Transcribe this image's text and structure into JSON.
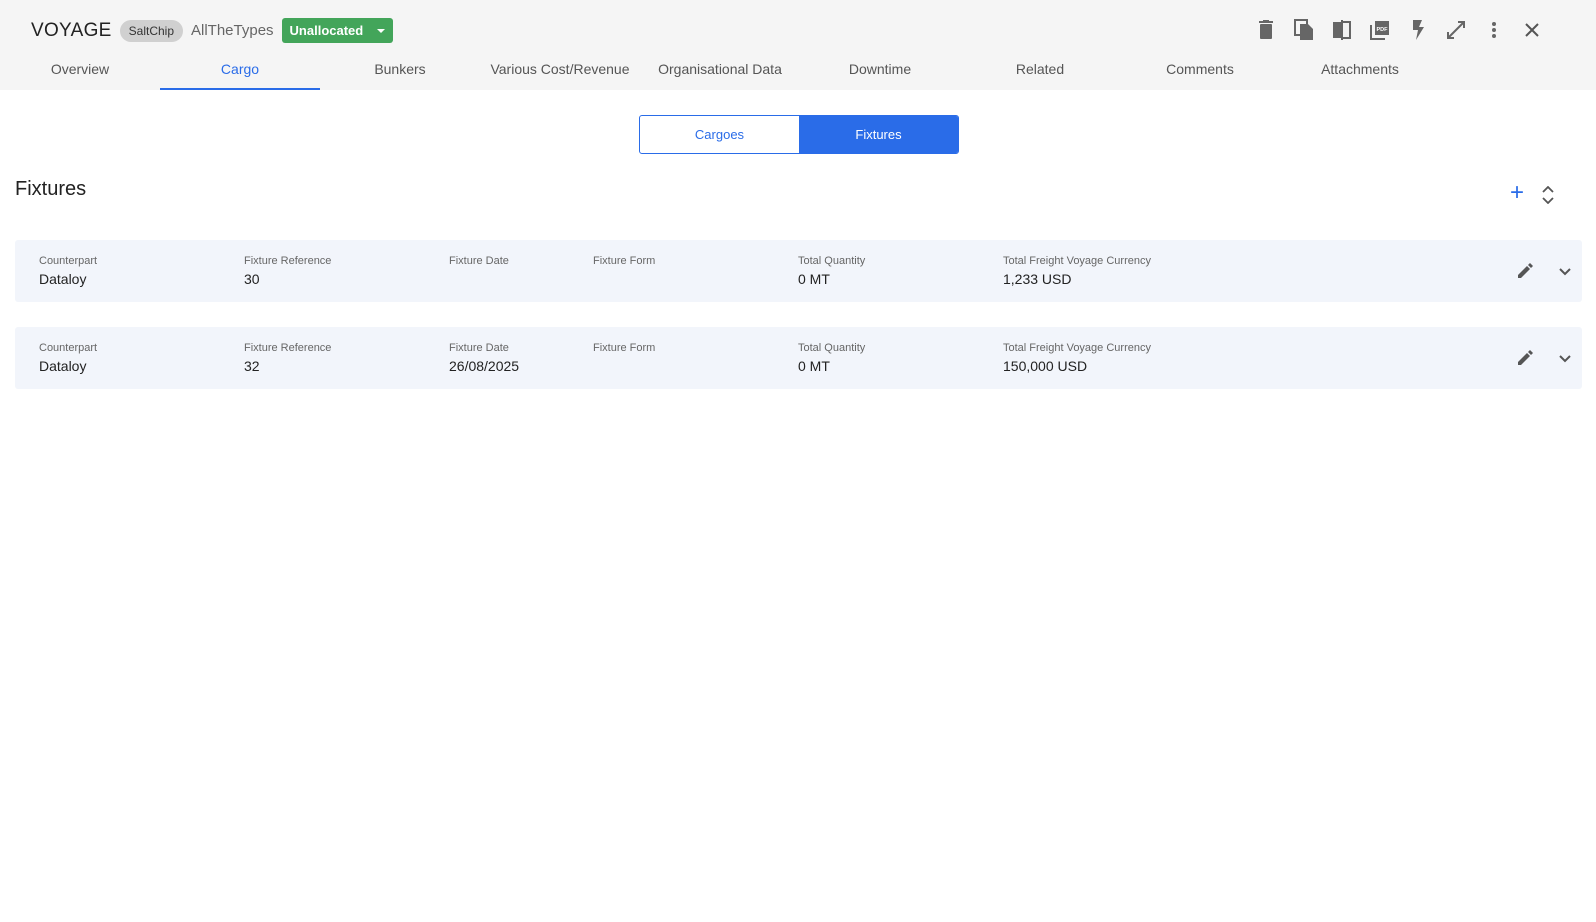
{
  "header": {
    "title": "VOYAGE",
    "chip": "SaltChip",
    "subtitle": "AllTheTypes",
    "status": "Unallocated",
    "status_color": "#43a55a",
    "icons": [
      "delete-icon",
      "copy-icon",
      "compare-icon",
      "pdf-icon",
      "flash-icon",
      "expand-icon",
      "more-vert-icon",
      "close-icon"
    ]
  },
  "tabs": [
    "Overview",
    "Cargo",
    "Bunkers",
    "Various Cost/Revenue",
    "Organisational Data",
    "Downtime",
    "Related",
    "Comments",
    "Attachments"
  ],
  "active_tab": "Cargo",
  "toggle": {
    "cargoes": "Cargoes",
    "fixtures": "Fixtures"
  },
  "section": {
    "title": "Fixtures"
  },
  "labels": {
    "counterpart": "Counterpart",
    "ref": "Fixture Reference",
    "date": "Fixture Date",
    "form": "Fixture Form",
    "qty": "Total Quantity",
    "freight": "Total Freight Voyage Currency"
  },
  "fixtures": [
    {
      "counterpart": "Dataloy",
      "ref": "30",
      "date": "",
      "form": "",
      "qty": "0 MT",
      "freight": "1,233 USD"
    },
    {
      "counterpart": "Dataloy",
      "ref": "32",
      "date": "26/08/2025",
      "form": "",
      "qty": "0 MT",
      "freight": "150,000 USD"
    }
  ],
  "accent": "#2a6ce8"
}
